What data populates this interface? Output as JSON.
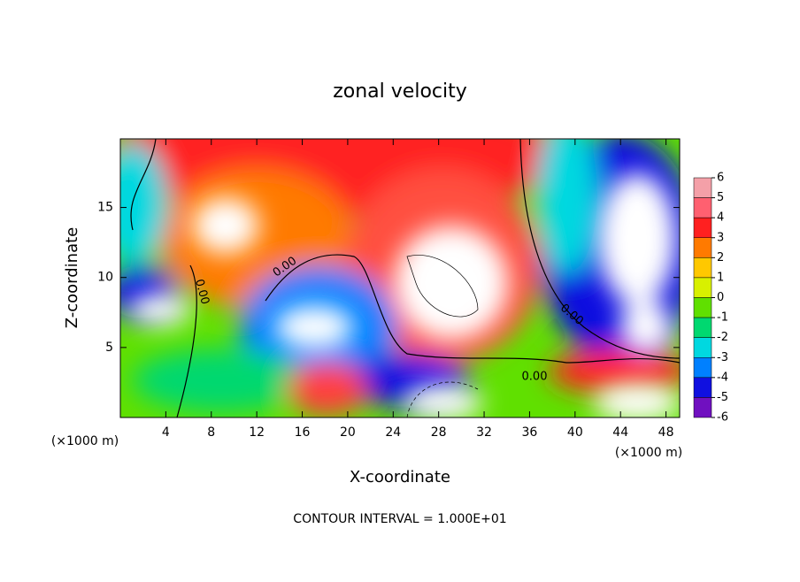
{
  "chart_data": {
    "type": "contour",
    "title": "zonal velocity",
    "x_label": "X-coordinate",
    "y_label": "Z-coordinate",
    "x_unit": "(×1000 m)",
    "y_unit": "(×1000 m)",
    "footer": "CONTOUR INTERVAL = 1.000E+01",
    "xlim": [
      0,
      49.2
    ],
    "xticks": [
      4,
      8,
      12,
      16,
      20,
      24,
      28,
      32,
      36,
      40,
      44,
      48
    ],
    "ylim": [
      0,
      19.9
    ],
    "yticks": [
      5,
      10,
      15
    ],
    "contour_labels": [
      "0.00",
      "0.00",
      "0.00",
      "0.00",
      "0.00"
    ],
    "colorbar": {
      "ticks": [
        6,
        5,
        4,
        3,
        2,
        1,
        0,
        -1,
        -2,
        -3,
        -4,
        -5,
        -6
      ],
      "colors": [
        "#f4a0a8",
        "#ff6070",
        "#ff2020",
        "#ff7a00",
        "#ffc800",
        "#d8f000",
        "#60e000",
        "#00d870",
        "#00d8e0",
        "#0080ff",
        "#1010e0",
        "#7010c0"
      ]
    }
  }
}
